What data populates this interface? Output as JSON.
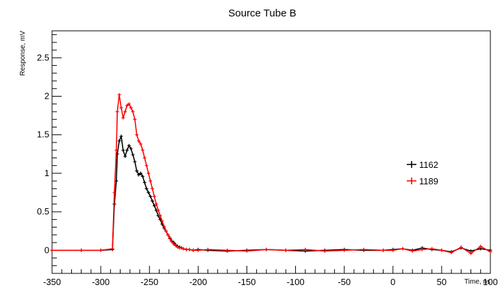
{
  "chart_data": {
    "type": "line",
    "title": "Source Tube B",
    "xlabel": "Time, ns",
    "ylabel": "Response, mV",
    "xlim": [
      -350,
      100
    ],
    "ylim": [
      -0.3,
      2.85
    ],
    "x_ticks": [
      -350,
      -300,
      -250,
      -200,
      -150,
      -100,
      -50,
      0,
      50,
      100
    ],
    "y_ticks": [
      0,
      0.5,
      1,
      1.5,
      2,
      2.5
    ],
    "y_tick_labels": [
      "0",
      "0.5",
      "1",
      "1.5",
      "2",
      "2.5"
    ],
    "grid": false,
    "legend_position": "right",
    "series": [
      {
        "name": "1162",
        "color": "#000000",
        "x": [
          -350,
          -320,
          -300,
          -288,
          -286,
          -284,
          -283,
          -281,
          -279,
          -277,
          -275,
          -273,
          -271,
          -269,
          -267,
          -265,
          -263,
          -261,
          -259,
          -257,
          -255,
          -253,
          -251,
          -249,
          -247,
          -245,
          -243,
          -241,
          -239,
          -237,
          -235,
          -233,
          -231,
          -229,
          -227,
          -225,
          -223,
          -221,
          -219,
          -217,
          -215,
          -212,
          -209,
          -205,
          -200,
          -190,
          -170,
          -150,
          -130,
          -110,
          -90,
          -70,
          -50,
          -30,
          -10,
          0,
          10,
          20,
          30,
          40,
          50,
          60,
          70,
          80,
          90,
          100
        ],
        "y": [
          0,
          0,
          0,
          0.01,
          0.6,
          0.9,
          1.25,
          1.42,
          1.48,
          1.3,
          1.22,
          1.3,
          1.36,
          1.32,
          1.24,
          1.15,
          1.03,
          0.98,
          1.0,
          0.96,
          0.88,
          0.8,
          0.75,
          0.7,
          0.64,
          0.58,
          0.52,
          0.45,
          0.4,
          0.34,
          0.29,
          0.25,
          0.2,
          0.16,
          0.12,
          0.1,
          0.07,
          0.05,
          0.04,
          0.03,
          0.02,
          0.01,
          0.01,
          0.0,
          0.01,
          0.0,
          -0.01,
          0.0,
          0.01,
          0.0,
          -0.01,
          0.0,
          0.01,
          0.0,
          0.0,
          0.01,
          0.02,
          0.0,
          0.03,
          0.01,
          0.0,
          -0.02,
          0.03,
          -0.01,
          0.02,
          0.0
        ]
      },
      {
        "name": "1189",
        "color": "#ff0000",
        "x": [
          -350,
          -320,
          -300,
          -288,
          -286,
          -284,
          -283,
          -281,
          -279,
          -277,
          -275,
          -273,
          -271,
          -269,
          -267,
          -265,
          -263,
          -261,
          -259,
          -257,
          -255,
          -253,
          -251,
          -249,
          -247,
          -245,
          -243,
          -241,
          -239,
          -237,
          -235,
          -233,
          -231,
          -229,
          -227,
          -225,
          -223,
          -221,
          -219,
          -217,
          -215,
          -212,
          -209,
          -205,
          -200,
          -190,
          -170,
          -150,
          -130,
          -110,
          -90,
          -70,
          -50,
          -30,
          -10,
          0,
          10,
          20,
          30,
          40,
          50,
          60,
          70,
          80,
          90,
          100
        ],
        "y": [
          0,
          0,
          0,
          0.02,
          0.75,
          1.3,
          1.8,
          2.02,
          1.85,
          1.72,
          1.8,
          1.88,
          1.9,
          1.85,
          1.8,
          1.7,
          1.5,
          1.42,
          1.38,
          1.3,
          1.2,
          1.1,
          1.0,
          0.9,
          0.8,
          0.7,
          0.6,
          0.52,
          0.45,
          0.38,
          0.31,
          0.25,
          0.2,
          0.15,
          0.11,
          0.08,
          0.06,
          0.04,
          0.03,
          0.03,
          0.02,
          0.01,
          0.01,
          0.0,
          0.0,
          0.01,
          0.0,
          -0.01,
          0.01,
          0.0,
          0.01,
          -0.01,
          0.0,
          0.01,
          0.0,
          0.0,
          0.02,
          -0.01,
          0.01,
          0.02,
          0.0,
          -0.03,
          0.04,
          -0.04,
          0.05,
          -0.02
        ]
      }
    ]
  }
}
